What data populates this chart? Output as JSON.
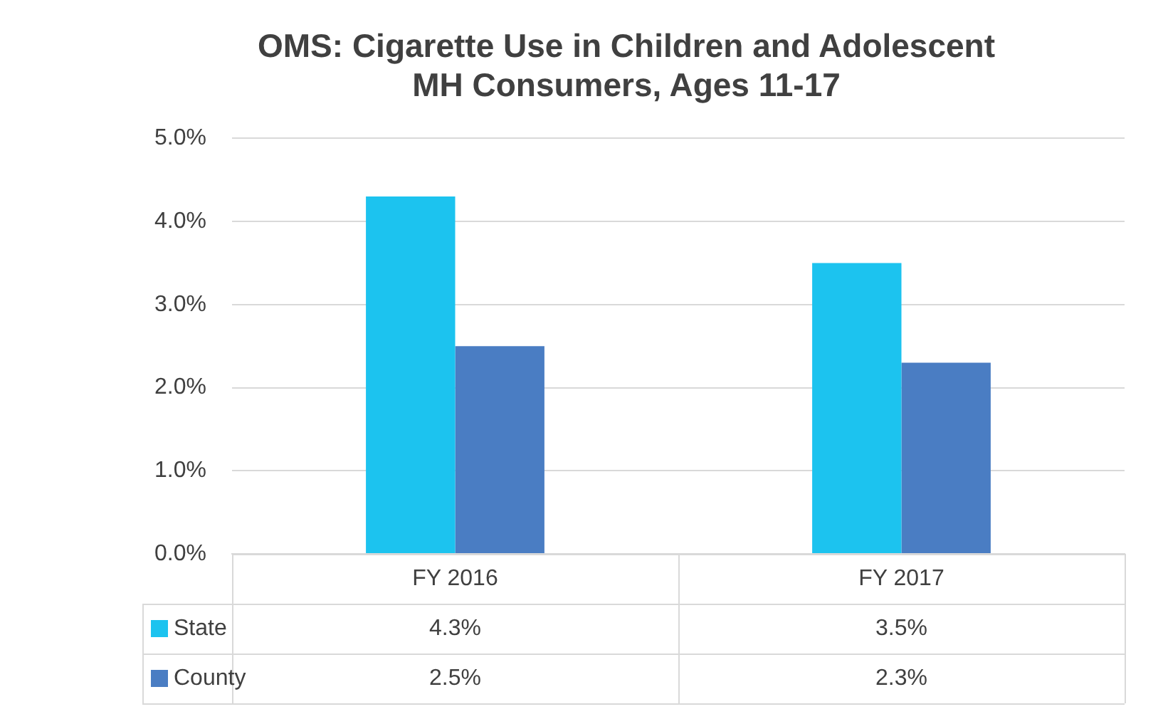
{
  "chart_data": {
    "type": "bar",
    "title": "OMS: Cigarette Use in Children and Adolescent MH Consumers, Ages 11-17",
    "categories": [
      "FY 2016",
      "FY 2017"
    ],
    "series": [
      {
        "name": "State",
        "color": "#1cc3ef",
        "values": [
          4.3,
          3.5
        ],
        "value_labels": [
          "4.3%",
          "3.5%"
        ]
      },
      {
        "name": "County",
        "color": "#4a7dc3",
        "values": [
          2.5,
          2.3
        ],
        "value_labels": [
          "2.5%",
          "2.3%"
        ]
      }
    ],
    "ylim": [
      0,
      5
    ],
    "yticks": [
      {
        "value": 0,
        "label": "0.0%"
      },
      {
        "value": 1,
        "label": "1.0%"
      },
      {
        "value": 2,
        "label": "2.0%"
      },
      {
        "value": 3,
        "label": "3.0%"
      },
      {
        "value": 4,
        "label": "4.0%"
      },
      {
        "value": 5,
        "label": "5.0%"
      }
    ],
    "grid": "y",
    "legend": "bottom left"
  }
}
